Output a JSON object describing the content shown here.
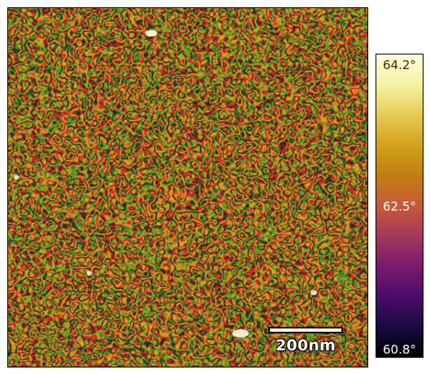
{
  "colorbar": {
    "max_label": "64.2°",
    "mid_label": "62.5°",
    "min_label": "60.8°",
    "colormap": [
      "#000004",
      "#1a0a3f",
      "#4a0c6b",
      "#7a1a6c",
      "#a5385a",
      "#c85a3a",
      "#bf7f12",
      "#d3a21a",
      "#e6cb55",
      "#f5f2a2",
      "#fcfedd"
    ]
  },
  "scale_bar": {
    "label": "200nm"
  },
  "image": {
    "subject": "AFM phase image of labyrinthine worm-like domains"
  }
}
